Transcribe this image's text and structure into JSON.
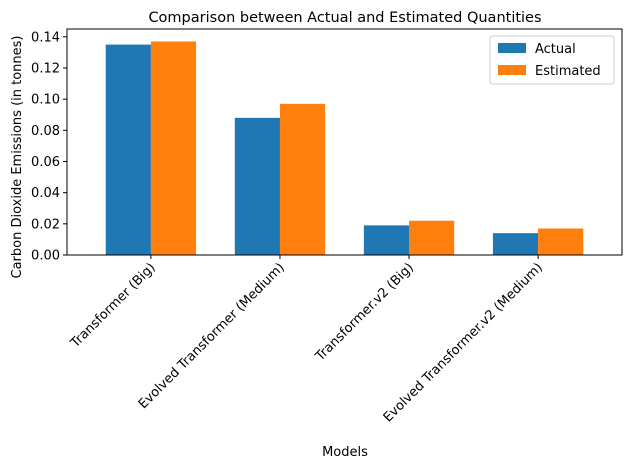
{
  "chart_data": {
    "type": "bar",
    "title": "Comparison between Actual and Estimated Quantities",
    "xlabel": "Models",
    "ylabel": "Carbon Dioxide Emissions (in tonnes)",
    "categories": [
      "Transformer (Big)",
      "Evolved Transformer (Medium)",
      "Transformer.v2 (Big)",
      "Evolved Transformer.v2 (Medium)"
    ],
    "series": [
      {
        "name": "Actual",
        "values": [
          0.135,
          0.088,
          0.019,
          0.014
        ],
        "color": "#1f77b4"
      },
      {
        "name": "Estimated",
        "values": [
          0.137,
          0.097,
          0.022,
          0.017
        ],
        "color": "#ff7f0e"
      }
    ],
    "ylim": [
      0,
      0.145
    ],
    "yticks": [
      0.0,
      0.02,
      0.04,
      0.06,
      0.08,
      0.1,
      0.12,
      0.14
    ],
    "ytick_labels": [
      "0.00",
      "0.02",
      "0.04",
      "0.06",
      "0.08",
      "0.10",
      "0.12",
      "0.14"
    ],
    "legend_position": "top-right",
    "grid": false
  }
}
